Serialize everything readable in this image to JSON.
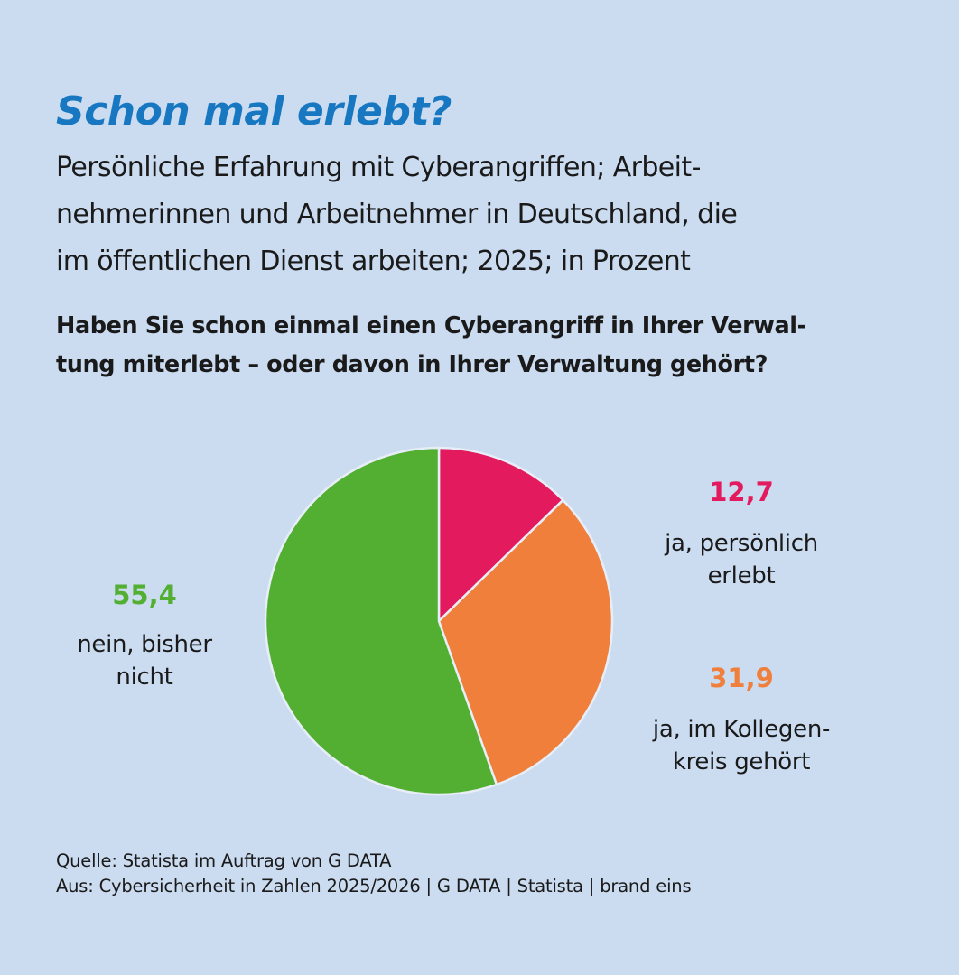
{
  "chart_data": {
    "type": "pie",
    "title": "Schon mal erlebt?",
    "subtitle": "Persönliche Erfahrung mit Cyberangriffen; Arbeit-nehmerinnen und Arbeitnehmer in Deutschland, die im öffentlichen Dienst arbeiten; 2025; in Prozent",
    "subtitle_lines": [
      "Persönliche Erfahrung mit Cyberangriffen; Arbeit-",
      "nehmerinnen und Arbeitnehmer in Deutschland, die",
      "im öffentlichen Dienst arbeiten; 2025; in Prozent"
    ],
    "question_lines": [
      "Haben Sie schon einmal einen Cyberangriff in Ihrer Verwal-",
      "tung miterlebt – oder davon in Ihrer Verwaltung gehört?"
    ],
    "slices": [
      {
        "label": "ja, persönlich erlebt",
        "label_lines": [
          "ja, persönlich",
          "erlebt"
        ],
        "value": 12.7,
        "value_label": "12,7",
        "color": "#e31a5d"
      },
      {
        "label": "ja, im Kollegenkreis gehört",
        "label_lines": [
          "ja, im Kollegen-",
          "kreis gehört"
        ],
        "value": 31.9,
        "value_label": "31,9",
        "color": "#ef7f3a"
      },
      {
        "label": "nein, bisher nicht",
        "label_lines": [
          "nein, bisher",
          "nicht"
        ],
        "value": 55.4,
        "value_label": "55,4",
        "color": "#52af31"
      }
    ],
    "start": "top",
    "direction": "clockwise"
  },
  "source_lines": [
    "Quelle: Statista im Auftrag von G DATA",
    "Aus: Cybersicherheit in Zahlen 2025/2026 | G DATA | Statista | brand eins"
  ],
  "colors": {
    "background": "#cbdcf1",
    "title": "#1777c0"
  }
}
